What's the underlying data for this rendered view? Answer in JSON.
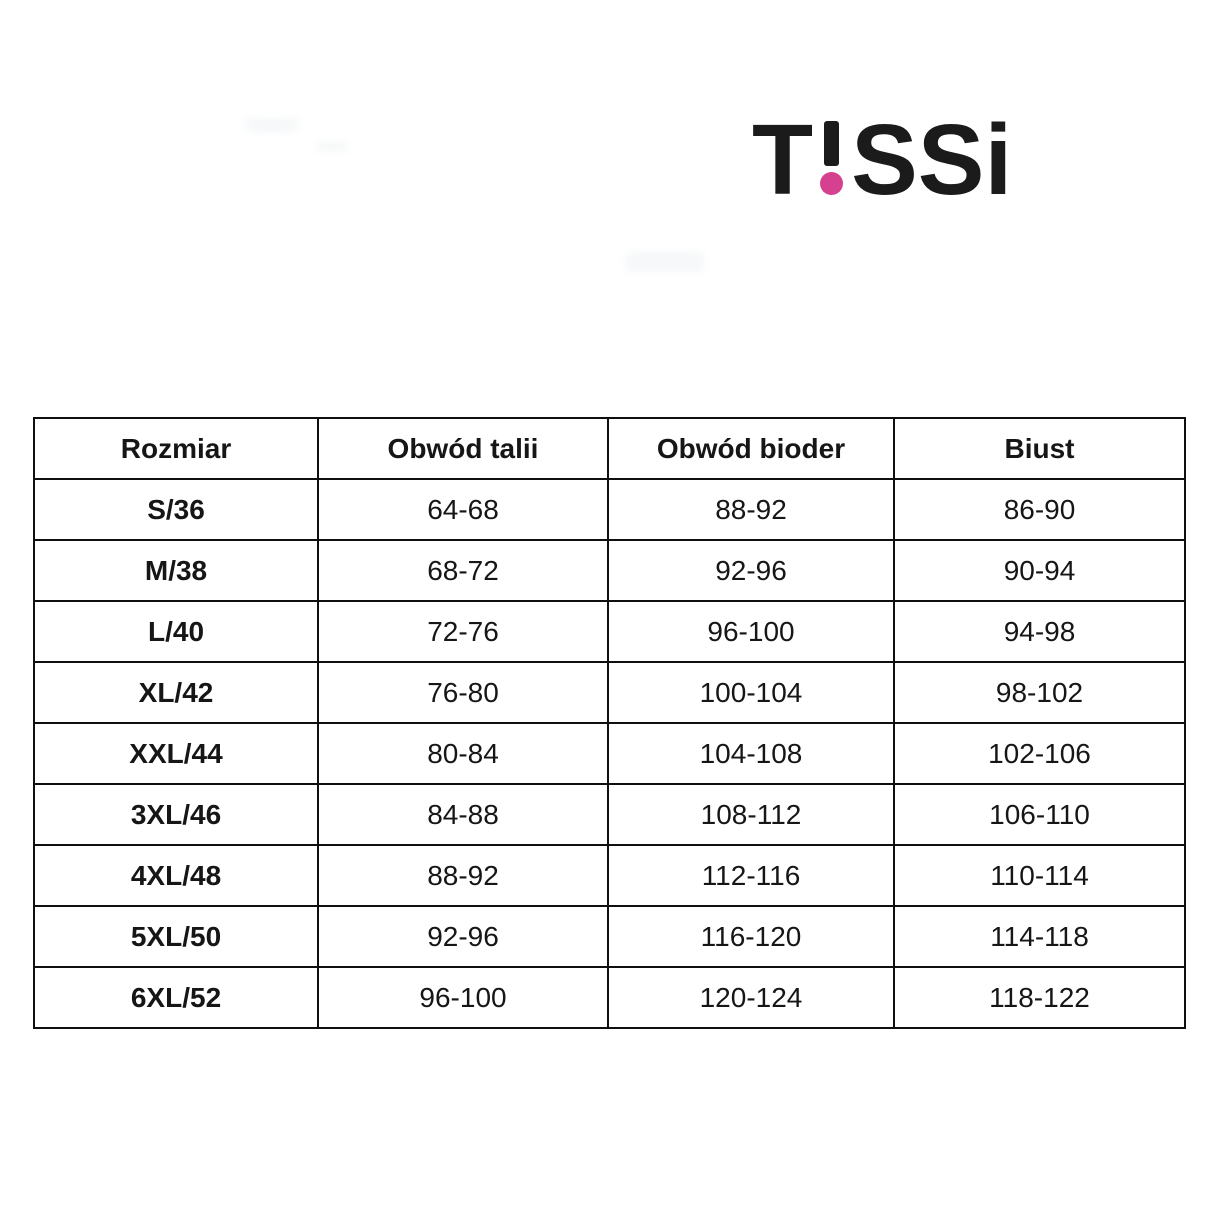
{
  "logo": {
    "prefix": "T",
    "suffix": "SSi",
    "text_color": "#1b1b1b",
    "exclaim_dot_color": "#d6418f"
  },
  "colors": {
    "background": "#ffffff",
    "table_border": "#0f0f0f",
    "text": "#161616",
    "accent_pink": "#d6418f"
  },
  "table": {
    "headers": [
      "Rozmiar",
      "Obwód talii",
      "Obwód bioder",
      "Biust"
    ],
    "rows": [
      [
        "S/36",
        "64-68",
        "88-92",
        "86-90"
      ],
      [
        "M/38",
        "68-72",
        "92-96",
        "90-94"
      ],
      [
        "L/40",
        "72-76",
        "96-100",
        "94-98"
      ],
      [
        "XL/42",
        "76-80",
        "100-104",
        "98-102"
      ],
      [
        "XXL/44",
        "80-84",
        "104-108",
        "102-106"
      ],
      [
        "3XL/46",
        "84-88",
        "108-112",
        "106-110"
      ],
      [
        "4XL/48",
        "88-92",
        "112-116",
        "110-114"
      ],
      [
        "5XL/50",
        "92-96",
        "116-120",
        "114-118"
      ],
      [
        "6XL/52",
        "96-100",
        "120-124",
        "118-122"
      ]
    ]
  }
}
